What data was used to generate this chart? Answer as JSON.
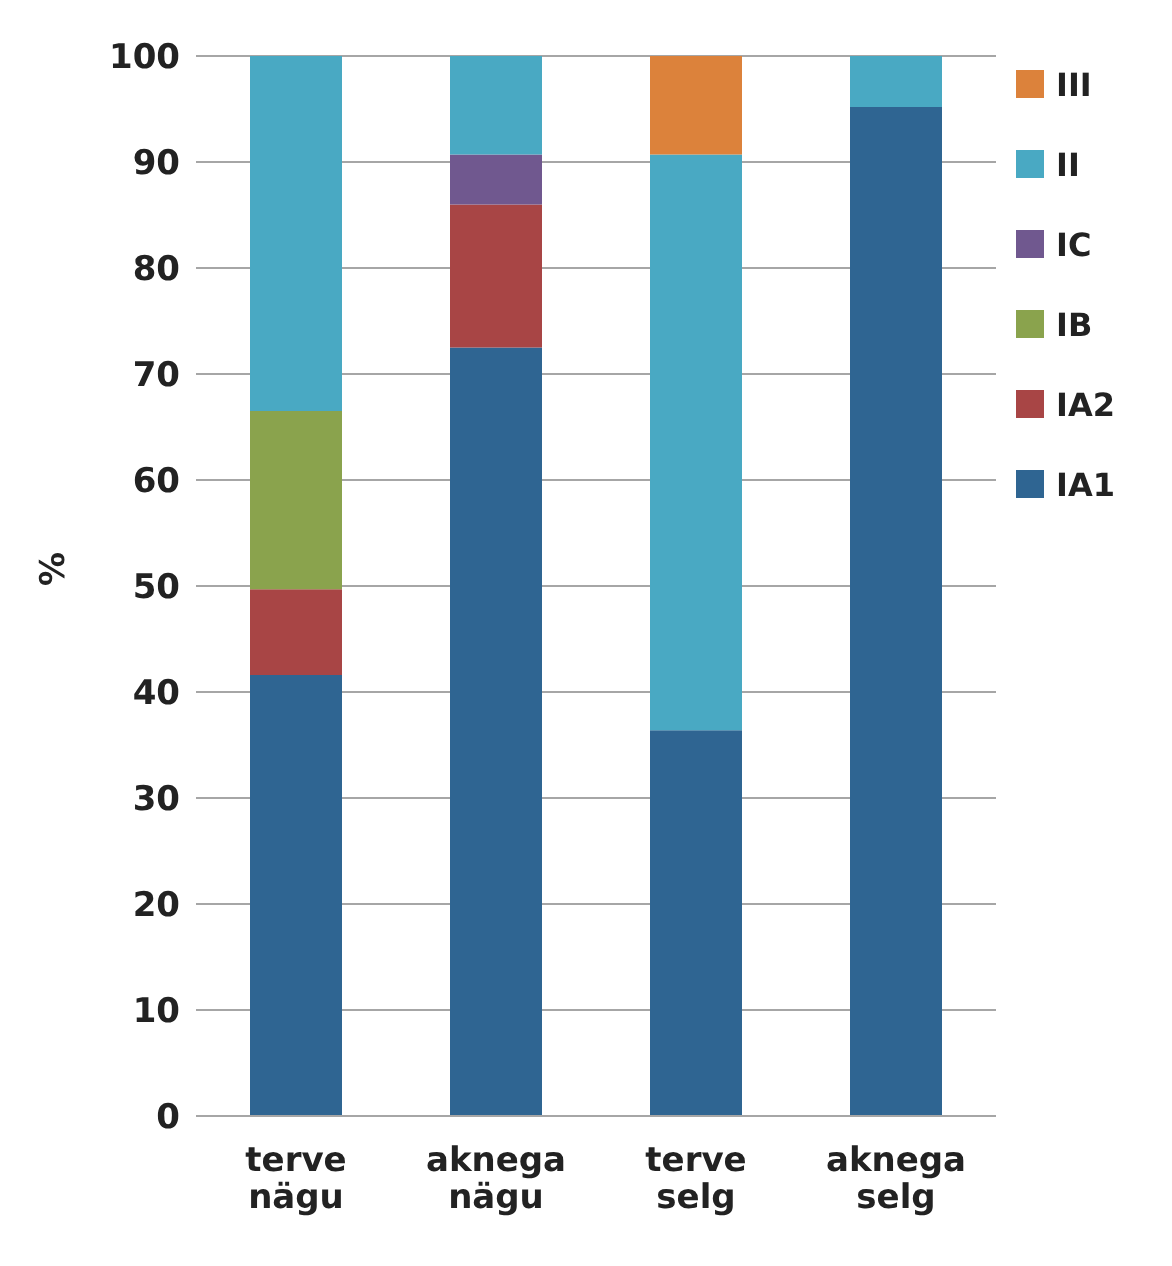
{
  "chart_data": {
    "type": "bar",
    "stacked": true,
    "ylabel": "%",
    "categories": [
      "terve nägu",
      "aknega nägu",
      "terve selg",
      "aknega selg"
    ],
    "series": [
      {
        "name": "IA1",
        "color": "#2f6592",
        "values": [
          41.6,
          72.5,
          36.4,
          95.2
        ]
      },
      {
        "name": "IA2",
        "color": "#a84545",
        "values": [
          8.1,
          13.5,
          0,
          0
        ]
      },
      {
        "name": "IB",
        "color": "#8aa34d",
        "values": [
          16.8,
          0,
          0,
          0
        ]
      },
      {
        "name": "IC",
        "color": "#70588f",
        "values": [
          0,
          4.7,
          0,
          0
        ]
      },
      {
        "name": "II",
        "color": "#49a9c3",
        "values": [
          33.5,
          9.3,
          54.3,
          4.8
        ]
      },
      {
        "name": "III",
        "color": "#dc823b",
        "values": [
          0,
          0,
          9.3,
          0
        ]
      }
    ],
    "ylim": [
      0,
      100
    ],
    "yticks": [
      0,
      10,
      20,
      30,
      40,
      50,
      60,
      70,
      80,
      90,
      100
    ],
    "grid": "y",
    "legend": "top right"
  }
}
